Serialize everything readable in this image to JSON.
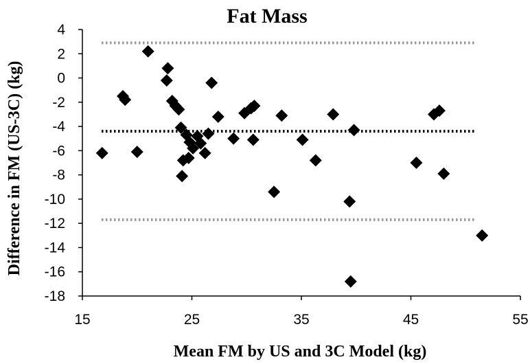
{
  "chart_data": {
    "type": "scatter",
    "title": "Fat Mass",
    "xlabel": "Mean FM by US and 3C Model (kg)",
    "ylabel": "Difference in FM (US-3C)  (kg)",
    "xlim": [
      15,
      55
    ],
    "ylim": [
      -18,
      4
    ],
    "xticks": [
      15,
      25,
      35,
      45,
      55
    ],
    "yticks": [
      4,
      2,
      0,
      -2,
      -4,
      -6,
      -8,
      -10,
      -12,
      -14,
      -16,
      -18
    ],
    "xtick_labels": [
      "15",
      "25",
      "35",
      "45",
      "55"
    ],
    "ytick_labels": [
      "4",
      "2",
      "0",
      "-2",
      "-4",
      "-6",
      "-8",
      "-10",
      "-12",
      "-14",
      "-16",
      "-18"
    ],
    "grid": false,
    "marker": "diamond",
    "reference_lines": [
      {
        "y": 2.9,
        "style": "dotted",
        "color": "#999999"
      },
      {
        "y": -4.4,
        "style": "dotted",
        "color": "#000000"
      },
      {
        "y": -11.7,
        "style": "dotted",
        "color": "#999999"
      }
    ],
    "points": [
      {
        "x": 16.8,
        "y": -6.2
      },
      {
        "x": 18.7,
        "y": -1.5
      },
      {
        "x": 18.9,
        "y": -1.8
      },
      {
        "x": 20.0,
        "y": -6.1
      },
      {
        "x": 21.0,
        "y": 2.2
      },
      {
        "x": 22.7,
        "y": -0.2
      },
      {
        "x": 22.8,
        "y": 0.8
      },
      {
        "x": 23.2,
        "y": -1.9
      },
      {
        "x": 23.5,
        "y": -2.3
      },
      {
        "x": 23.8,
        "y": -2.6
      },
      {
        "x": 24.0,
        "y": -4.1
      },
      {
        "x": 24.1,
        "y": -8.1
      },
      {
        "x": 24.2,
        "y": -6.8
      },
      {
        "x": 24.5,
        "y": -4.7
      },
      {
        "x": 24.7,
        "y": -6.6
      },
      {
        "x": 24.8,
        "y": -5.3
      },
      {
        "x": 25.1,
        "y": -5.8
      },
      {
        "x": 25.5,
        "y": -4.8
      },
      {
        "x": 25.8,
        "y": -5.4
      },
      {
        "x": 26.2,
        "y": -6.2
      },
      {
        "x": 26.5,
        "y": -4.6
      },
      {
        "x": 26.8,
        "y": -0.4
      },
      {
        "x": 27.4,
        "y": -3.2
      },
      {
        "x": 28.8,
        "y": -5.0
      },
      {
        "x": 29.8,
        "y": -2.9
      },
      {
        "x": 30.4,
        "y": -2.5
      },
      {
        "x": 30.7,
        "y": -2.3
      },
      {
        "x": 30.6,
        "y": -5.1
      },
      {
        "x": 32.5,
        "y": -9.4
      },
      {
        "x": 33.2,
        "y": -3.1
      },
      {
        "x": 35.1,
        "y": -5.1
      },
      {
        "x": 36.3,
        "y": -6.8
      },
      {
        "x": 37.9,
        "y": -3.0
      },
      {
        "x": 39.4,
        "y": -10.2
      },
      {
        "x": 39.5,
        "y": -16.8
      },
      {
        "x": 39.8,
        "y": -4.3
      },
      {
        "x": 45.5,
        "y": -7.0
      },
      {
        "x": 47.1,
        "y": -3.0
      },
      {
        "x": 47.6,
        "y": -2.7
      },
      {
        "x": 48.0,
        "y": -7.9
      },
      {
        "x": 51.5,
        "y": -13.0
      }
    ]
  }
}
